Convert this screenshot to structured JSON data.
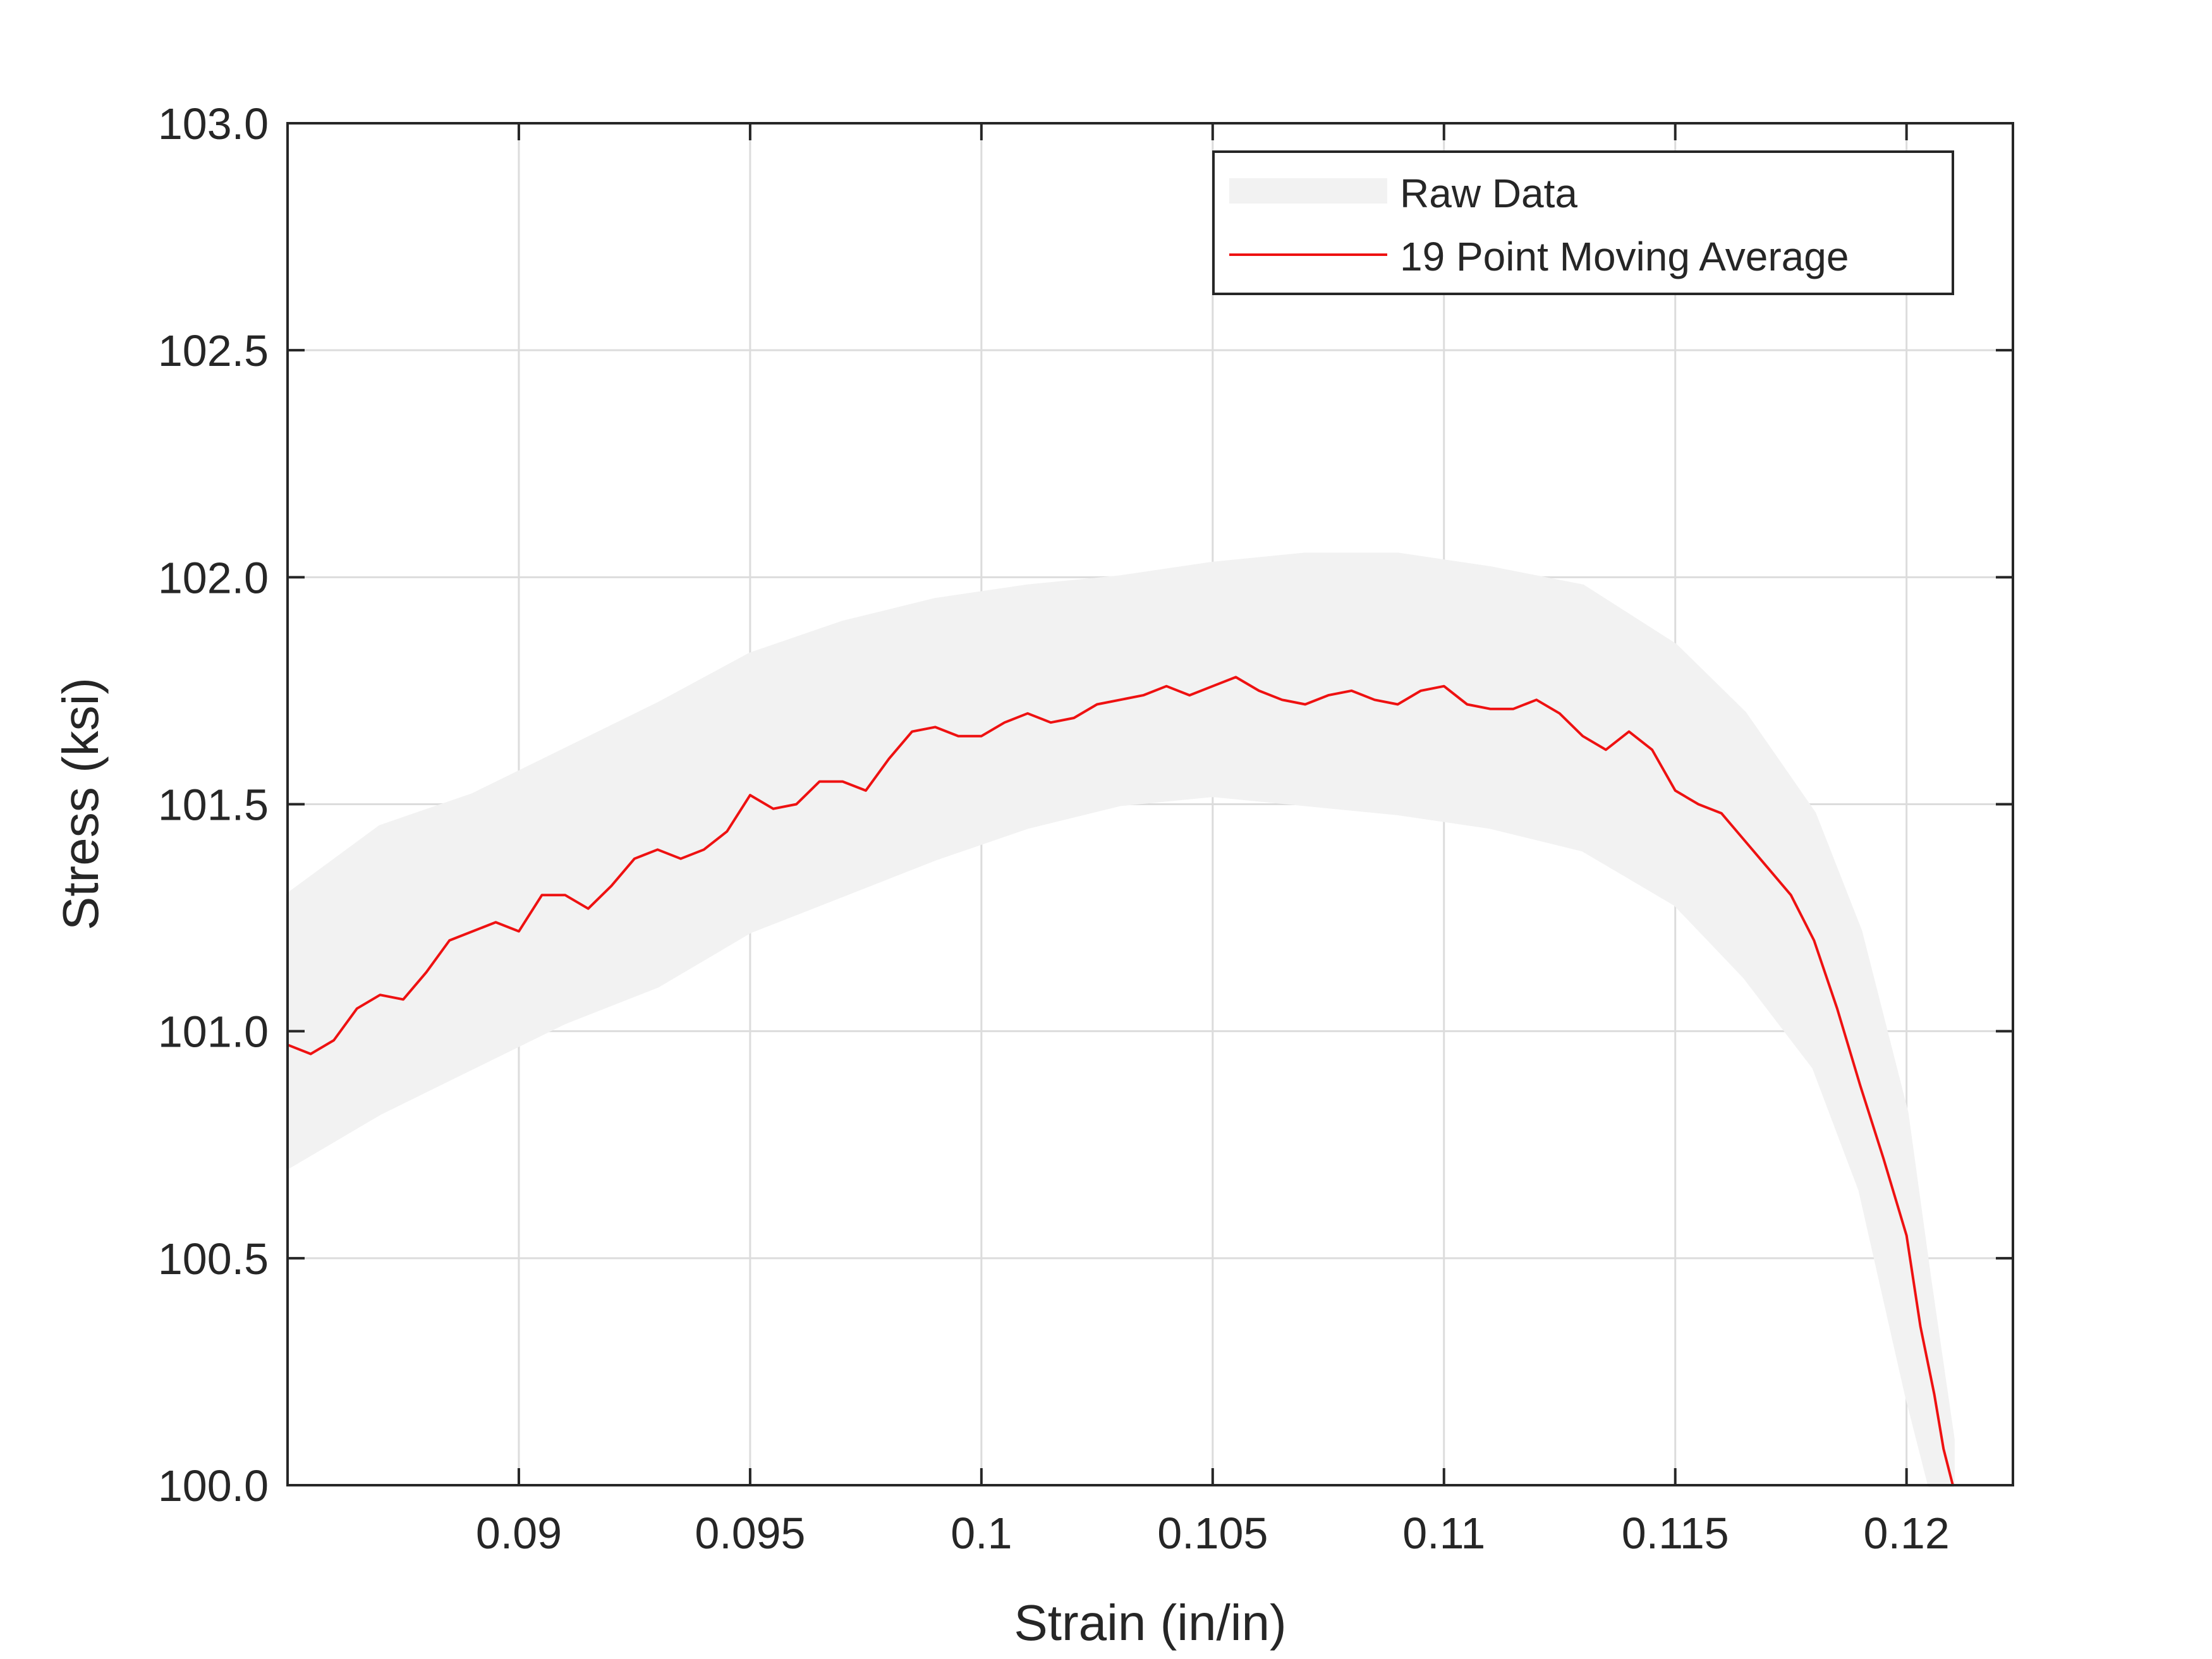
{
  "chart_data": {
    "type": "line",
    "xlabel": "Strain (in/in)",
    "ylabel": "Stress (ksi)",
    "xlim": [
      0.085,
      0.1223
    ],
    "ylim": [
      100.0,
      103.0
    ],
    "xticks": [
      0.09,
      0.095,
      0.1,
      0.105,
      0.11,
      0.115,
      0.12
    ],
    "xtick_labels": [
      "0.09",
      "0.095",
      "0.1",
      "0.105",
      "0.11",
      "0.115",
      "0.12"
    ],
    "yticks": [
      100.0,
      100.5,
      101.0,
      101.5,
      102.0,
      102.5,
      103.0
    ],
    "ytick_labels": [
      "100.0",
      "100.5",
      "101.0",
      "101.5",
      "102.0",
      "102.5",
      "103.0"
    ],
    "grid": true,
    "legend_position": "top-right",
    "series": [
      {
        "name": "Raw Data",
        "color": "#f2f2f2",
        "style": "band",
        "x": [
          0.085,
          0.087,
          0.089,
          0.091,
          0.093,
          0.095,
          0.097,
          0.099,
          0.101,
          0.103,
          0.105,
          0.107,
          0.109,
          0.111,
          0.113,
          0.115,
          0.1165,
          0.118,
          0.119,
          0.12,
          0.1205,
          0.121
        ],
        "upper": [
          101.3,
          101.45,
          101.52,
          101.62,
          101.72,
          101.83,
          101.9,
          101.95,
          101.98,
          102.0,
          102.03,
          102.05,
          102.05,
          102.02,
          101.98,
          101.85,
          101.7,
          101.48,
          101.22,
          100.82,
          100.45,
          100.1
        ],
        "lower": [
          100.7,
          100.82,
          100.92,
          101.02,
          101.1,
          101.22,
          101.3,
          101.38,
          101.45,
          101.5,
          101.52,
          101.5,
          101.48,
          101.45,
          101.4,
          101.28,
          101.12,
          100.92,
          100.65,
          100.2,
          99.95,
          99.95
        ]
      },
      {
        "name": "19 Point Moving Average",
        "color": "#ee1111",
        "style": "line",
        "x": [
          0.085,
          0.0855,
          0.086,
          0.0865,
          0.087,
          0.0875,
          0.088,
          0.0885,
          0.089,
          0.0895,
          0.09,
          0.0905,
          0.091,
          0.0915,
          0.092,
          0.0925,
          0.093,
          0.0935,
          0.094,
          0.0945,
          0.095,
          0.0955,
          0.096,
          0.0965,
          0.097,
          0.0975,
          0.098,
          0.0985,
          0.099,
          0.0995,
          0.1,
          0.1005,
          0.101,
          0.1015,
          0.102,
          0.1025,
          0.103,
          0.1035,
          0.104,
          0.1045,
          0.105,
          0.1055,
          0.106,
          0.1065,
          0.107,
          0.1075,
          0.108,
          0.1085,
          0.109,
          0.1095,
          0.11,
          0.1105,
          0.111,
          0.1115,
          0.112,
          0.1125,
          0.113,
          0.1135,
          0.114,
          0.1145,
          0.115,
          0.1155,
          0.116,
          0.1165,
          0.117,
          0.1175,
          0.118,
          0.1185,
          0.119,
          0.1195,
          0.12,
          0.1203,
          0.1206,
          0.1208,
          0.121
        ],
        "y": [
          100.97,
          100.95,
          100.98,
          101.05,
          101.08,
          101.07,
          101.13,
          101.2,
          101.22,
          101.24,
          101.22,
          101.3,
          101.3,
          101.27,
          101.32,
          101.38,
          101.4,
          101.38,
          101.4,
          101.44,
          101.52,
          101.49,
          101.5,
          101.55,
          101.55,
          101.53,
          101.6,
          101.66,
          101.67,
          101.65,
          101.65,
          101.68,
          101.7,
          101.68,
          101.69,
          101.72,
          101.73,
          101.74,
          101.76,
          101.74,
          101.76,
          101.78,
          101.75,
          101.73,
          101.72,
          101.74,
          101.75,
          101.73,
          101.72,
          101.75,
          101.76,
          101.72,
          101.71,
          101.71,
          101.73,
          101.7,
          101.65,
          101.62,
          101.66,
          101.62,
          101.53,
          101.5,
          101.48,
          101.42,
          101.36,
          101.3,
          101.2,
          101.05,
          100.88,
          100.72,
          100.55,
          100.35,
          100.2,
          100.08,
          100.0
        ]
      }
    ]
  }
}
